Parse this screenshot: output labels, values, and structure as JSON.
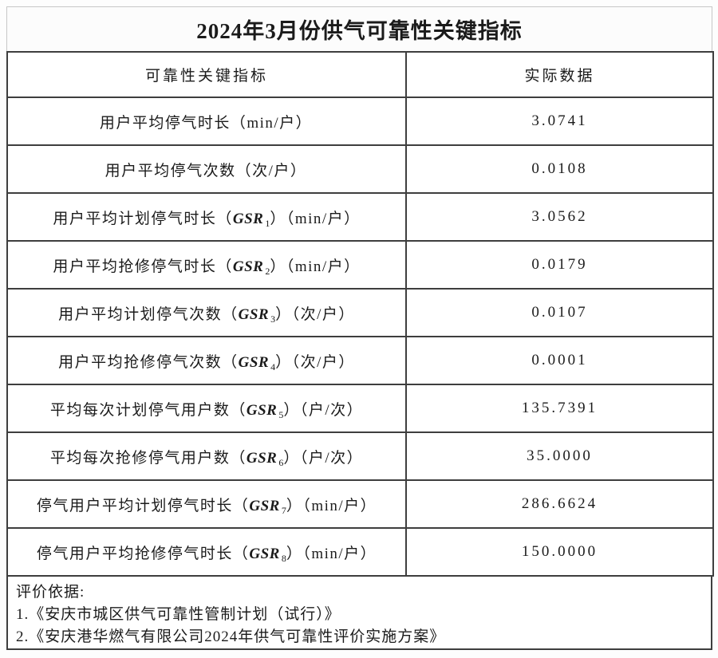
{
  "title": "2024年3月份供气可靠性关键指标",
  "table": {
    "headers": [
      "可靠性关键指标",
      "实际数据"
    ],
    "rows": [
      {
        "prefix": "用户平均停气时长（min/户）",
        "gsr": "",
        "sub": "",
        "suffix": "",
        "value": "3.0741"
      },
      {
        "prefix": "用户平均停气次数（次/户）",
        "gsr": "",
        "sub": "",
        "suffix": "",
        "value": "0.0108"
      },
      {
        "prefix": "用户平均计划停气时长（",
        "gsr": "GSR",
        "sub": "1",
        "suffix": "）（min/户）",
        "value": "3.0562"
      },
      {
        "prefix": "用户平均抢修停气时长（",
        "gsr": "GSR",
        "sub": "2",
        "suffix": "）（min/户）",
        "value": "0.0179"
      },
      {
        "prefix": "用户平均计划停气次数（",
        "gsr": "GSR",
        "sub": "3",
        "suffix": "）（次/户）",
        "value": "0.0107"
      },
      {
        "prefix": "用户平均抢修停气次数（",
        "gsr": "GSR",
        "sub": "4",
        "suffix": "）（次/户）",
        "value": "0.0001"
      },
      {
        "prefix": "平均每次计划停气用户数（",
        "gsr": "GSR",
        "sub": "5",
        "suffix": "）（户/次）",
        "value": "135.7391"
      },
      {
        "prefix": "平均每次抢修停气用户数（",
        "gsr": "GSR",
        "sub": "6",
        "suffix": "）（户/次）",
        "value": "35.0000"
      },
      {
        "prefix": "停气用户平均计划停气时长（",
        "gsr": "GSR",
        "sub": "7",
        "suffix": "）（min/户）",
        "value": "286.6624"
      },
      {
        "prefix": "停气用户平均抢修停气时长（",
        "gsr": "GSR",
        "sub": "8",
        "suffix": "）（min/户）",
        "value": "150.0000"
      }
    ]
  },
  "footer": {
    "heading": "评价依据:",
    "items": [
      "1.《安庆市城区供气可靠性管制计划（试行）》",
      "2.《安庆港华燃气有限公司2024年供气可靠性评价实施方案》"
    ]
  },
  "colors": {
    "table_border": "#3e3e3e",
    "title_border": "#c7c7c7",
    "text": "#1b1b1b",
    "background": "#fdfdfd"
  }
}
